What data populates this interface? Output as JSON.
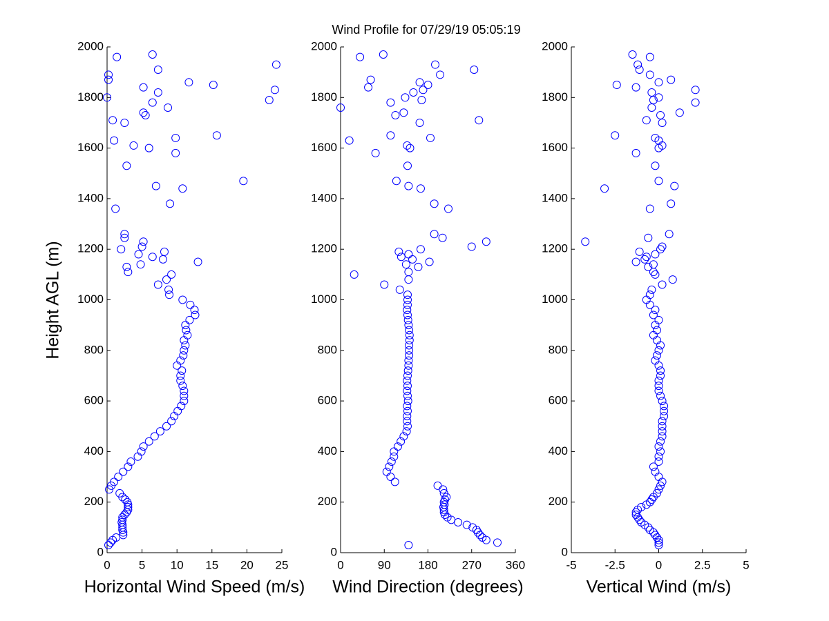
{
  "chart_data": [
    {
      "type": "scatter",
      "title": "Wind Profile for  07/29/19 05:05:19",
      "xlabel": "Horizontal Wind Speed (m/s)",
      "ylabel": "Height AGL (m)",
      "color": "#0000ff",
      "xlim": [
        0,
        25
      ],
      "xticks": [
        0,
        5,
        10,
        15,
        20,
        25
      ],
      "ylim": [
        0,
        2000
      ],
      "yticks": [
        0,
        200,
        400,
        600,
        800,
        1000,
        1200,
        1400,
        1600,
        1800,
        2000
      ],
      "x": [
        0.2,
        0.5,
        0.8,
        1.3,
        2.3,
        2.3,
        2.2,
        2.2,
        2.2,
        2.1,
        2.2,
        2.2,
        2.5,
        2.8,
        3.0,
        3.0,
        3.0,
        2.9,
        2.6,
        2.2,
        1.8,
        0.3,
        0.6,
        1.0,
        1.6,
        2.3,
        3.0,
        3.4,
        4.4,
        4.9,
        5.2,
        6.0,
        6.8,
        7.6,
        8.5,
        9.2,
        9.6,
        10.1,
        10.6,
        11.0,
        11.0,
        11.0,
        10.8,
        10.5,
        10.5,
        10.7,
        10.0,
        10.5,
        10.9,
        11.0,
        11.2,
        11.0,
        11.5,
        11.3,
        11.2,
        11.8,
        12.6,
        12.5,
        11.9,
        10.8,
        8.9,
        8.8,
        7.3,
        8.5,
        9.2,
        13,
        3,
        2.8,
        4.8,
        6.5,
        8,
        4.5,
        8.2,
        2,
        5,
        5.2,
        2.5,
        2.5,
        1.2,
        9,
        10.8,
        7,
        19.5,
        2.8,
        6,
        3.8,
        9.8,
        1,
        9.8,
        15.7,
        2.5,
        0.8,
        5.2,
        5.5,
        8.7,
        6.5,
        0,
        23.2,
        7.3,
        24,
        5.2,
        15.2,
        11.7,
        0.2,
        0.2,
        7.3,
        24.2,
        1.4,
        6.5
      ],
      "y": [
        30,
        40,
        50,
        60,
        70,
        80,
        90,
        100,
        110,
        120,
        130,
        140,
        150,
        160,
        170,
        180,
        190,
        200,
        210,
        220,
        235,
        250,
        265,
        280,
        300,
        320,
        340,
        360,
        380,
        400,
        420,
        440,
        460,
        480,
        500,
        520,
        540,
        560,
        580,
        600,
        620,
        640,
        660,
        680,
        700,
        720,
        740,
        760,
        780,
        800,
        820,
        840,
        860,
        880,
        900,
        920,
        940,
        960,
        980,
        1000,
        1020,
        1040,
        1060,
        1080,
        1100,
        1150,
        1110,
        1130,
        1140,
        1170,
        1160,
        1180,
        1190,
        1200,
        1210,
        1230,
        1245,
        1260,
        1360,
        1380,
        1440,
        1450,
        1470,
        1530,
        1600,
        1610,
        1580,
        1630,
        1640,
        1650,
        1700,
        1710,
        1740,
        1730,
        1760,
        1780,
        1800,
        1790,
        1820,
        1830,
        1840,
        1850,
        1860,
        1870,
        1890,
        1910,
        1930,
        1960,
        1970
      ]
    },
    {
      "type": "scatter",
      "xlabel": "Wind Direction (degrees)",
      "color": "#0000ff",
      "xlim": [
        0,
        360
      ],
      "xticks": [
        0,
        90,
        180,
        270,
        360
      ],
      "ylim": [
        0,
        2000
      ],
      "yticks": [
        0,
        200,
        400,
        600,
        800,
        1000,
        1200,
        1400,
        1600,
        1800,
        2000
      ],
      "x": [
        140,
        323,
        300,
        292,
        287,
        283,
        280,
        272,
        260,
        242,
        228,
        220,
        215,
        213,
        213,
        212,
        214,
        213,
        215,
        218,
        213,
        211,
        200,
        112,
        103,
        95,
        100,
        105,
        110,
        110,
        118,
        124,
        130,
        136,
        138,
        137,
        137,
        138,
        137,
        139,
        138,
        137,
        138,
        137,
        138,
        139,
        140,
        140,
        141,
        141,
        141,
        142,
        142,
        141,
        140,
        139,
        138,
        137,
        138,
        138,
        138,
        122,
        90,
        140,
        28,
        183,
        140,
        160,
        135,
        125,
        148,
        140,
        120,
        165,
        270,
        300,
        210,
        193,
        222,
        193,
        165,
        140,
        115,
        138,
        143,
        137,
        72,
        18,
        185,
        103,
        163,
        285,
        130,
        113,
        0,
        103,
        133,
        167,
        150,
        170,
        57,
        180,
        163,
        62,
        205,
        275,
        195,
        40,
        88
      ],
      "y": [
        30,
        40,
        50,
        60,
        70,
        80,
        90,
        100,
        110,
        120,
        130,
        140,
        150,
        160,
        170,
        180,
        190,
        200,
        210,
        220,
        235,
        250,
        265,
        280,
        300,
        320,
        340,
        360,
        380,
        400,
        420,
        440,
        460,
        480,
        500,
        520,
        540,
        560,
        580,
        600,
        620,
        640,
        660,
        680,
        700,
        720,
        740,
        760,
        780,
        800,
        820,
        840,
        860,
        880,
        900,
        920,
        940,
        960,
        980,
        1000,
        1020,
        1040,
        1060,
        1080,
        1100,
        1150,
        1110,
        1130,
        1140,
        1170,
        1160,
        1180,
        1190,
        1200,
        1210,
        1230,
        1245,
        1260,
        1360,
        1380,
        1440,
        1450,
        1470,
        1530,
        1600,
        1610,
        1580,
        1630,
        1640,
        1650,
        1700,
        1710,
        1740,
        1730,
        1760,
        1780,
        1800,
        1790,
        1820,
        1830,
        1840,
        1850,
        1860,
        1870,
        1890,
        1910,
        1930,
        1960,
        1970
      ]
    },
    {
      "type": "scatter",
      "xlabel": "Vertical Wind (m/s)",
      "color": "#0000ff",
      "xlim": [
        -5,
        5
      ],
      "xticks": [
        -5,
        -2.5,
        0,
        2.5,
        5
      ],
      "ylim": [
        0,
        2000
      ],
      "yticks": [
        0,
        200,
        400,
        600,
        800,
        1000,
        1200,
        1400,
        1600,
        1800,
        2000
      ],
      "x": [
        0,
        0,
        0,
        -0.1,
        -0.2,
        -0.3,
        -0.5,
        -0.6,
        -0.8,
        -1.0,
        -1.1,
        -1.2,
        -1.3,
        -1.3,
        -1.2,
        -1.0,
        -0.7,
        -0.5,
        -0.4,
        -0.3,
        -0.1,
        0,
        0.1,
        0.2,
        0,
        -0.2,
        -0.3,
        0,
        0,
        0.1,
        0,
        0.1,
        0.2,
        0.2,
        0.2,
        0.2,
        0.3,
        0.3,
        0.3,
        0.2,
        0.1,
        0,
        0,
        0,
        0.1,
        0.1,
        0,
        -0.2,
        -0.1,
        0,
        0.1,
        -0.1,
        -0.3,
        -0.1,
        -0.2,
        0,
        -0.3,
        -0.2,
        -0.5,
        -0.7,
        -0.5,
        -0.4,
        0.2,
        0.8,
        -0.2,
        -1.3,
        -0.3,
        -0.6,
        -0.3,
        -0.7,
        -0.8,
        -0.2,
        -1.1,
        0.1,
        0.2,
        -4.2,
        -0.6,
        0.6,
        -0.5,
        0.7,
        -3.1,
        0.9,
        0,
        -0.2,
        0,
        0.2,
        -1.3,
        0,
        -0.2,
        -2.5,
        0.2,
        -0.7,
        1.2,
        0.1,
        -0.4,
        2.1,
        0,
        -0.3,
        -0.4,
        2.1,
        -1.3,
        -2.4,
        0,
        0.7,
        -0.5,
        -1.1,
        -1.2,
        -0.5,
        -1.5
      ],
      "y": [
        30,
        40,
        50,
        60,
        70,
        80,
        90,
        100,
        110,
        120,
        130,
        140,
        150,
        160,
        170,
        180,
        190,
        200,
        210,
        220,
        235,
        250,
        265,
        280,
        300,
        320,
        340,
        360,
        380,
        400,
        420,
        440,
        460,
        480,
        500,
        520,
        540,
        560,
        580,
        600,
        620,
        640,
        660,
        680,
        700,
        720,
        740,
        760,
        780,
        800,
        820,
        840,
        860,
        880,
        900,
        920,
        940,
        960,
        980,
        1000,
        1020,
        1040,
        1060,
        1080,
        1100,
        1150,
        1110,
        1130,
        1140,
        1170,
        1160,
        1180,
        1190,
        1200,
        1210,
        1230,
        1245,
        1260,
        1360,
        1380,
        1440,
        1450,
        1470,
        1530,
        1600,
        1610,
        1580,
        1630,
        1640,
        1650,
        1700,
        1710,
        1740,
        1730,
        1760,
        1780,
        1800,
        1790,
        1820,
        1830,
        1840,
        1850,
        1860,
        1870,
        1890,
        1910,
        1930,
        1960,
        1970
      ]
    }
  ]
}
